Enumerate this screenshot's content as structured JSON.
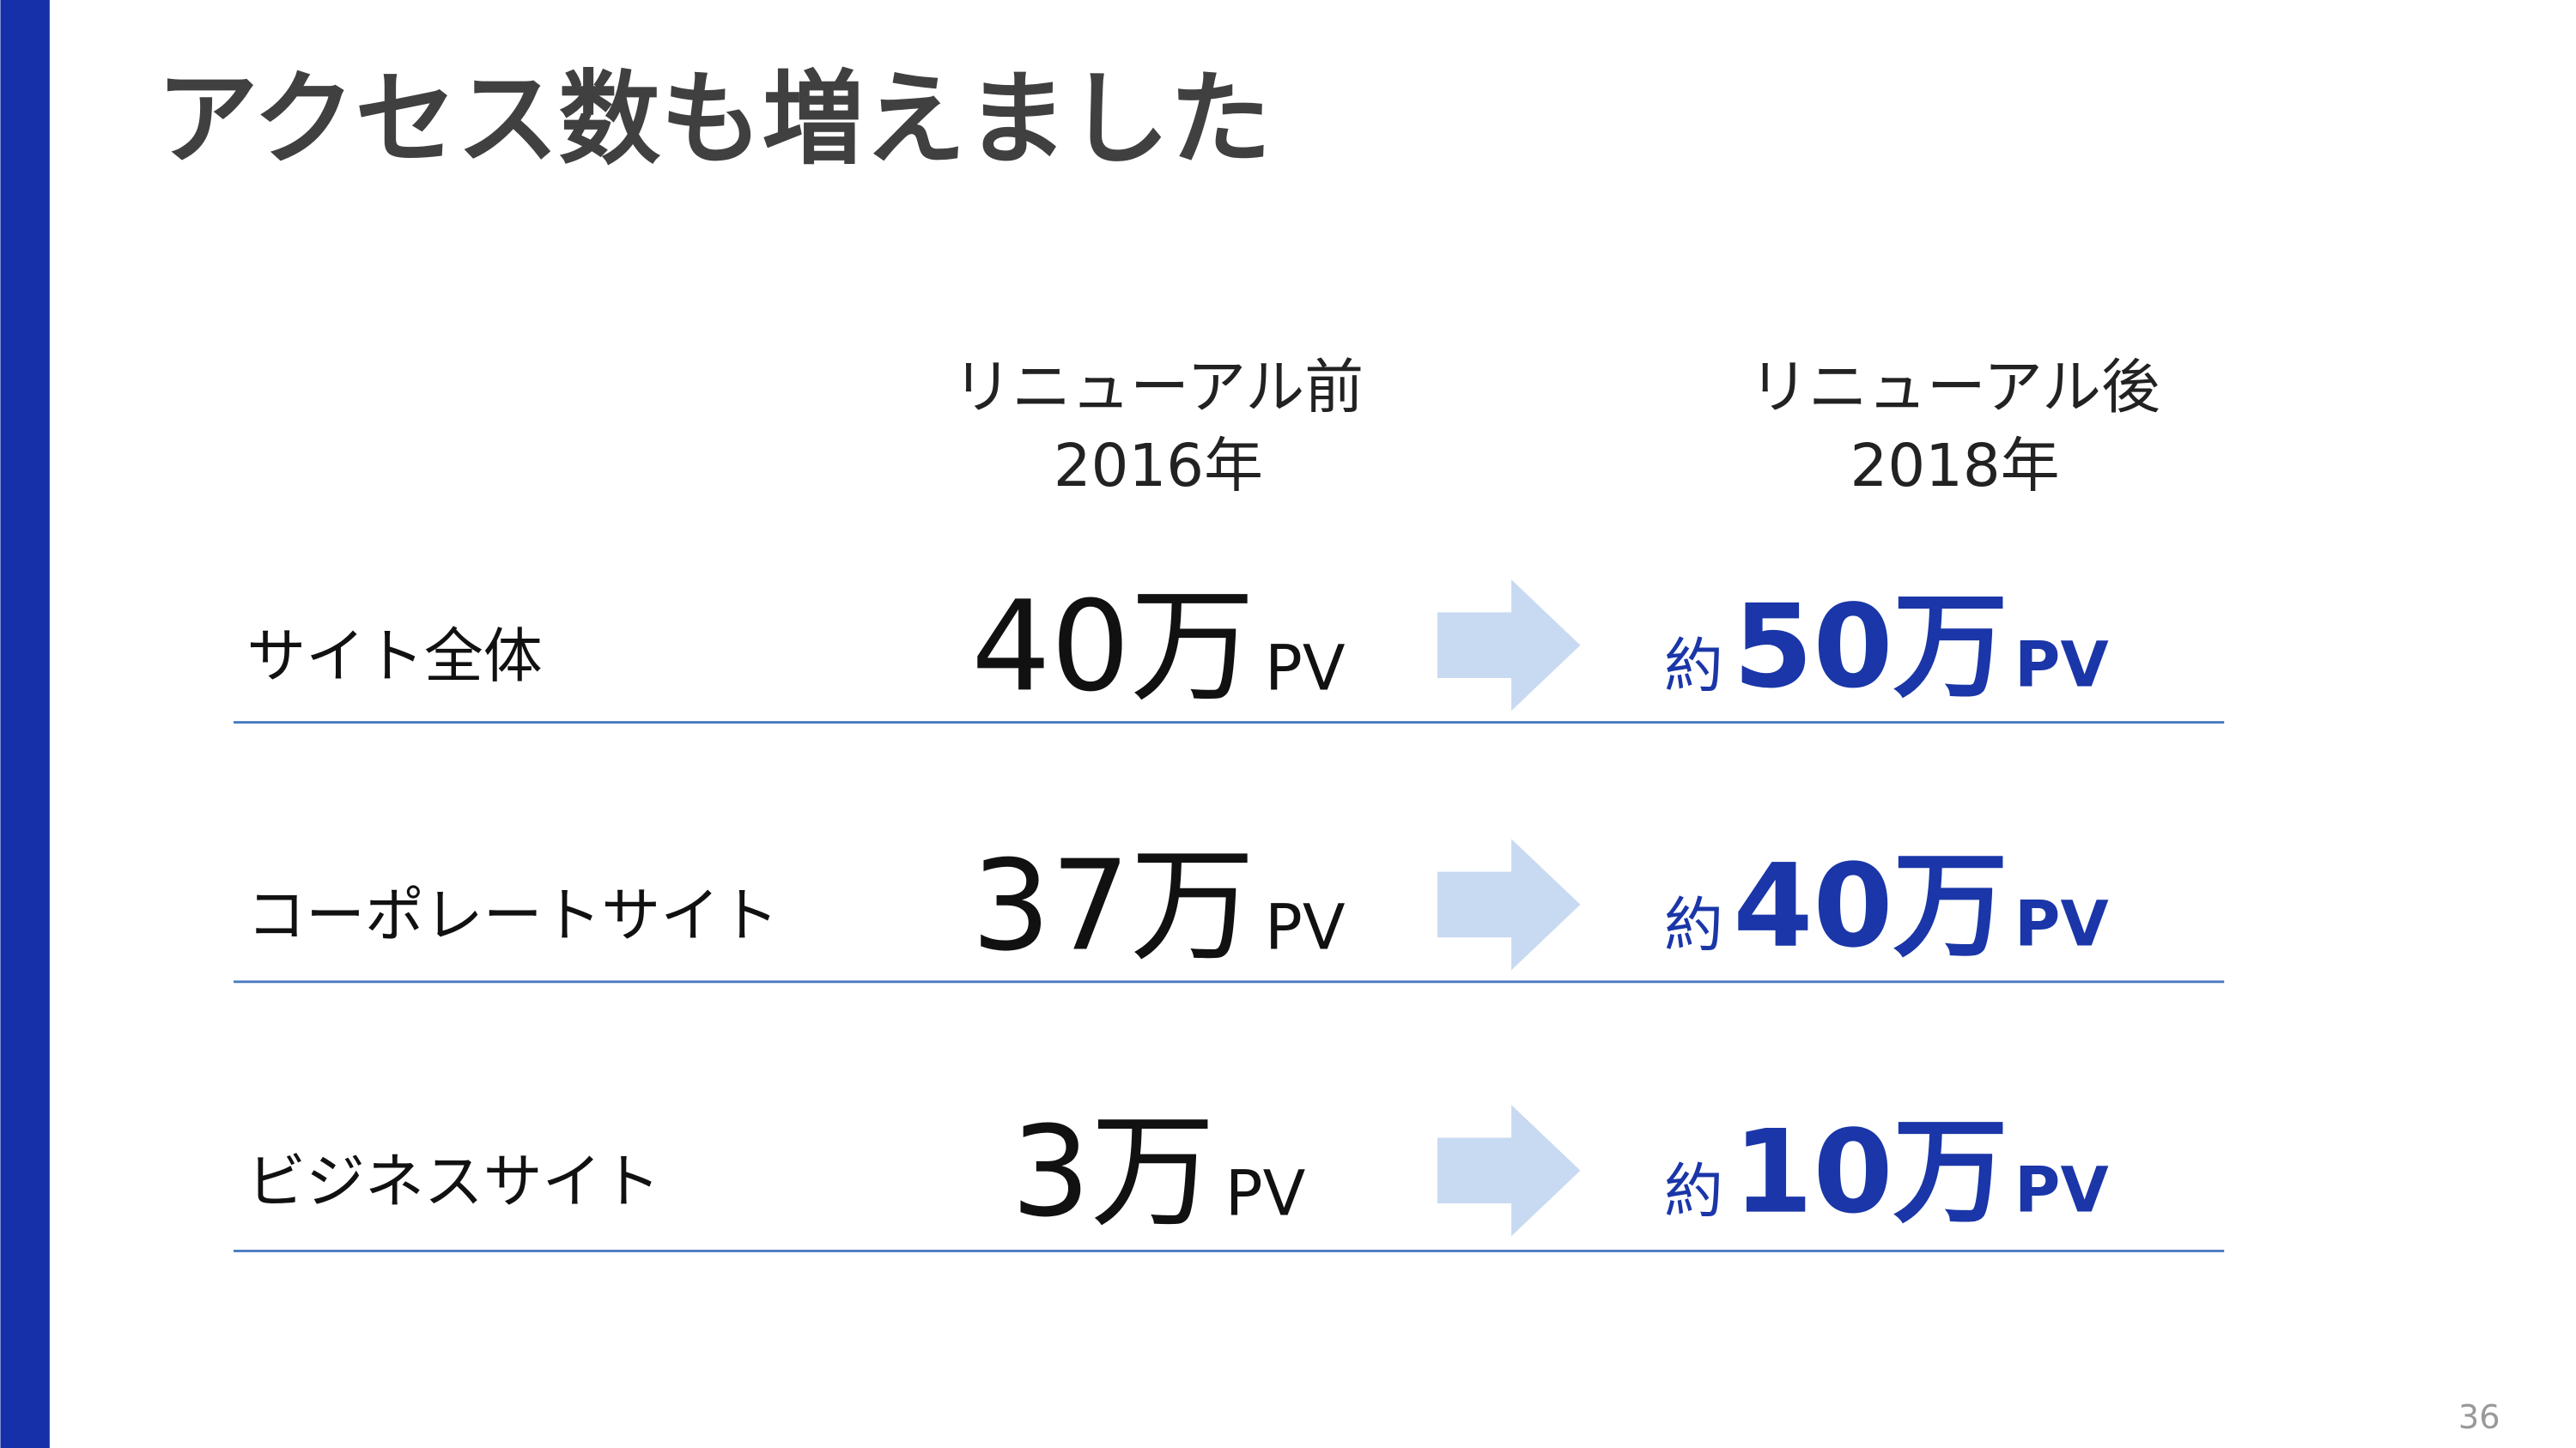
{
  "title": "アクセス数も増えました",
  "columns": [
    {
      "line1": "リニューアル前",
      "line2": "2016年"
    },
    {
      "line1": "リニューアル後",
      "line2": "2018年"
    }
  ],
  "rows": [
    {
      "label": "サイト全体",
      "before": {
        "number": "40万",
        "unit": "PV"
      },
      "after": {
        "prefix": "約",
        "number": "50万",
        "unit": "PV"
      }
    },
    {
      "label": "コーポレートサイト",
      "before": {
        "number": "37万",
        "unit": "PV"
      },
      "after": {
        "prefix": "約",
        "number": "40万",
        "unit": "PV"
      }
    },
    {
      "label": "ビジネスサイト",
      "before": {
        "number": "3万",
        "unit": "PV"
      },
      "after": {
        "prefix": "約",
        "number": "10万",
        "unit": "PV"
      }
    }
  ],
  "page_number": "36"
}
